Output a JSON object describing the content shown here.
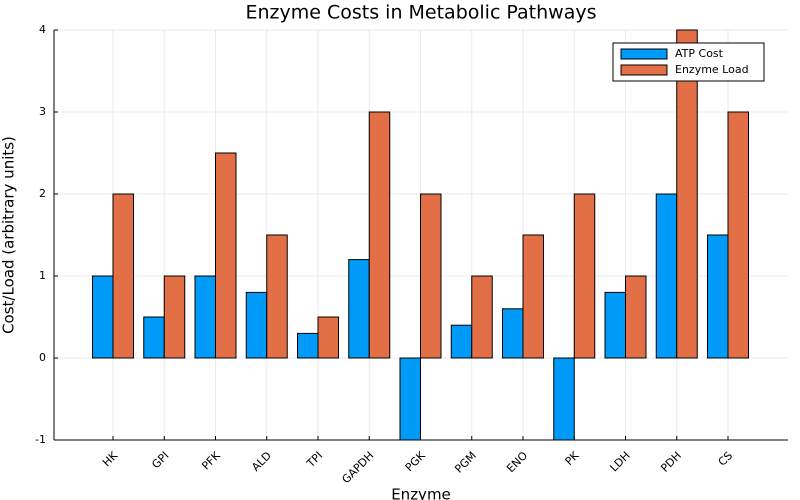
{
  "chart_data": {
    "type": "bar",
    "title": "Enzyme Costs in Metabolic Pathways",
    "x_label": "Enzyme",
    "y_label": "Cost/Load (arbitrary units)",
    "categories": [
      "HK",
      "GPI",
      "PFK",
      "ALD",
      "TPI",
      "GAPDH",
      "PGK",
      "PGM",
      "ENO",
      "PK",
      "LDH",
      "PDH",
      "CS"
    ],
    "series": [
      {
        "name": "ATP Cost",
        "color": "#009af9",
        "values": [
          1,
          0.5,
          1,
          0.8,
          0.3,
          1.2,
          -1,
          0.4,
          0.6,
          -1,
          0.8,
          2,
          1.5
        ]
      },
      {
        "name": "Enzyme Load",
        "color": "#e26f46",
        "values": [
          2,
          1,
          2.5,
          1.5,
          0.5,
          3,
          2,
          1,
          1.5,
          2,
          1,
          4,
          3
        ]
      }
    ],
    "ylim": [
      -1,
      4
    ],
    "yticks": [
      -1,
      0,
      1,
      2,
      3,
      4
    ],
    "grid": true,
    "legend": "top-right"
  }
}
